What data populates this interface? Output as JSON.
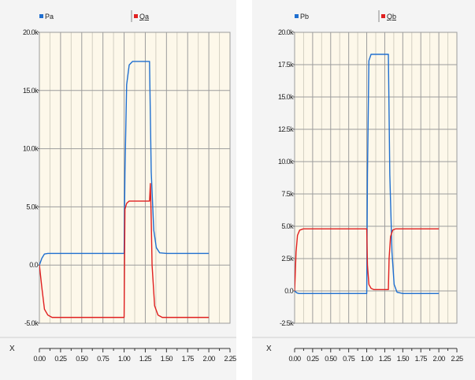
{
  "chart_data": [
    {
      "type": "line",
      "panel": "left",
      "x_axis_label": "X",
      "xlim": [
        0,
        2.25
      ],
      "ylim": [
        -5000,
        20000
      ],
      "xticks": [
        "0.00",
        "0.25",
        "0.50",
        "0.75",
        "1.00",
        "1.25",
        "1.50",
        "1.75",
        "2.00",
        "2.25"
      ],
      "yticks": [
        "20.0k",
        "15.0k",
        "10.0k",
        "5.0k",
        "0.0",
        "-5.0k"
      ],
      "grid": true,
      "legend_placement": "top",
      "series": [
        {
          "name": "Pa",
          "color": "#1f6fd0",
          "x": [
            0.0,
            0.03,
            0.06,
            0.1,
            0.2,
            0.5,
            1.0,
            1.01,
            1.03,
            1.06,
            1.1,
            1.3,
            1.32,
            1.35,
            1.38,
            1.42,
            1.5,
            2.0
          ],
          "y": [
            0,
            600,
            950,
            1000,
            1000,
            1000,
            1000,
            8000,
            15500,
            17200,
            17500,
            17500,
            8000,
            3000,
            1500,
            1050,
            1000,
            1000
          ]
        },
        {
          "name": "Qa",
          "color": "#e02020",
          "x": [
            0.0,
            0.03,
            0.06,
            0.1,
            0.15,
            0.2,
            0.5,
            1.0,
            1.01,
            1.03,
            1.06,
            1.1,
            1.3,
            1.31,
            1.32,
            1.33,
            1.36,
            1.4,
            1.45,
            1.5,
            2.0
          ],
          "y": [
            0,
            -2000,
            -3800,
            -4300,
            -4500,
            -4500,
            -4500,
            -4500,
            4800,
            5300,
            5500,
            5500,
            5500,
            7000,
            4000,
            0,
            -3500,
            -4300,
            -4500,
            -4500,
            -4500
          ]
        }
      ]
    },
    {
      "type": "line",
      "panel": "right",
      "x_axis_label": "X",
      "xlim": [
        0,
        2.25
      ],
      "ylim": [
        -2500,
        20000
      ],
      "xticks": [
        "0.00",
        "0.25",
        "0.50",
        "0.75",
        "1.00",
        "1.25",
        "1.50",
        "1.75",
        "2.00",
        "2.25"
      ],
      "yticks": [
        "20.0k",
        "17.5k",
        "15.0k",
        "12.5k",
        "10.0k",
        "7.5k",
        "5.0k",
        "2.5k",
        "0.0",
        "-2.5k"
      ],
      "grid": true,
      "legend_placement": "top",
      "series": [
        {
          "name": "Pb",
          "color": "#1f6fd0",
          "x": [
            0.0,
            0.03,
            0.06,
            0.1,
            0.5,
            1.0,
            1.01,
            1.03,
            1.06,
            1.1,
            1.3,
            1.32,
            1.35,
            1.38,
            1.42,
            1.5,
            2.0
          ],
          "y": [
            0,
            -150,
            -200,
            -200,
            -200,
            -200,
            9000,
            17800,
            18300,
            18300,
            18300,
            9000,
            3000,
            500,
            -100,
            -200,
            -200
          ]
        },
        {
          "name": "Qb",
          "color": "#e02020",
          "x": [
            0.0,
            0.02,
            0.04,
            0.07,
            0.12,
            0.2,
            0.5,
            1.0,
            1.01,
            1.03,
            1.06,
            1.1,
            1.3,
            1.31,
            1.33,
            1.36,
            1.4,
            1.5,
            2.0
          ],
          "y": [
            0,
            3000,
            4300,
            4700,
            4800,
            4800,
            4800,
            4800,
            2000,
            500,
            200,
            100,
            100,
            2500,
            4200,
            4700,
            4800,
            4800,
            4800
          ]
        }
      ]
    }
  ]
}
